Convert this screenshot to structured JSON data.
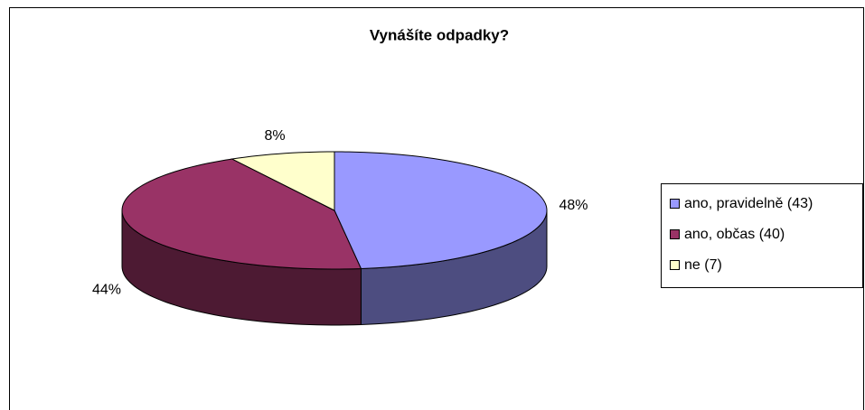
{
  "chart_data": {
    "type": "pie",
    "title": "Vynášíte odpadky?",
    "categories": [
      "ano, pravidelně (43)",
      "ano, občas (40)",
      "ne (7)"
    ],
    "values": [
      48,
      44,
      8
    ],
    "value_labels": [
      "48%",
      "44%",
      "8%"
    ],
    "colors": [
      "#9999ff",
      "#993366",
      "#ffffcc"
    ],
    "legend": "right"
  }
}
